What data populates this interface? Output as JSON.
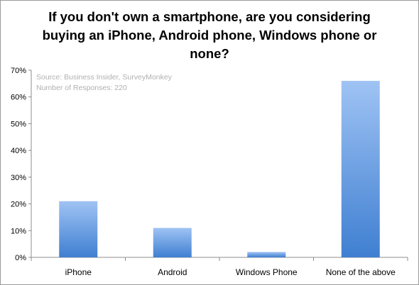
{
  "chart_data": {
    "type": "bar",
    "title_lines": [
      "If you don't own a smartphone, are you considering",
      "buying an iPhone, Android phone, Windows phone or",
      "none?"
    ],
    "categories": [
      "iPhone",
      "Android",
      "Windows Phone",
      "None of the above"
    ],
    "values": [
      21,
      11,
      2,
      66
    ],
    "value_unit": "%",
    "ylim": [
      0,
      70
    ],
    "yticks": [
      "0%",
      "10%",
      "20%",
      "30%",
      "40%",
      "50%",
      "60%",
      "70%"
    ],
    "xlabel": "",
    "ylabel": "",
    "grid": false,
    "annotation": {
      "source": "Source: Business Insider, SurveyMonkey",
      "responses": "Number of Responses: 220"
    },
    "colors": {
      "bar_top": "#9fc3f4",
      "bar_bottom": "#3f7fd1",
      "axis": "#8c8c8c",
      "annotation_text": "#b0b0b0"
    }
  }
}
